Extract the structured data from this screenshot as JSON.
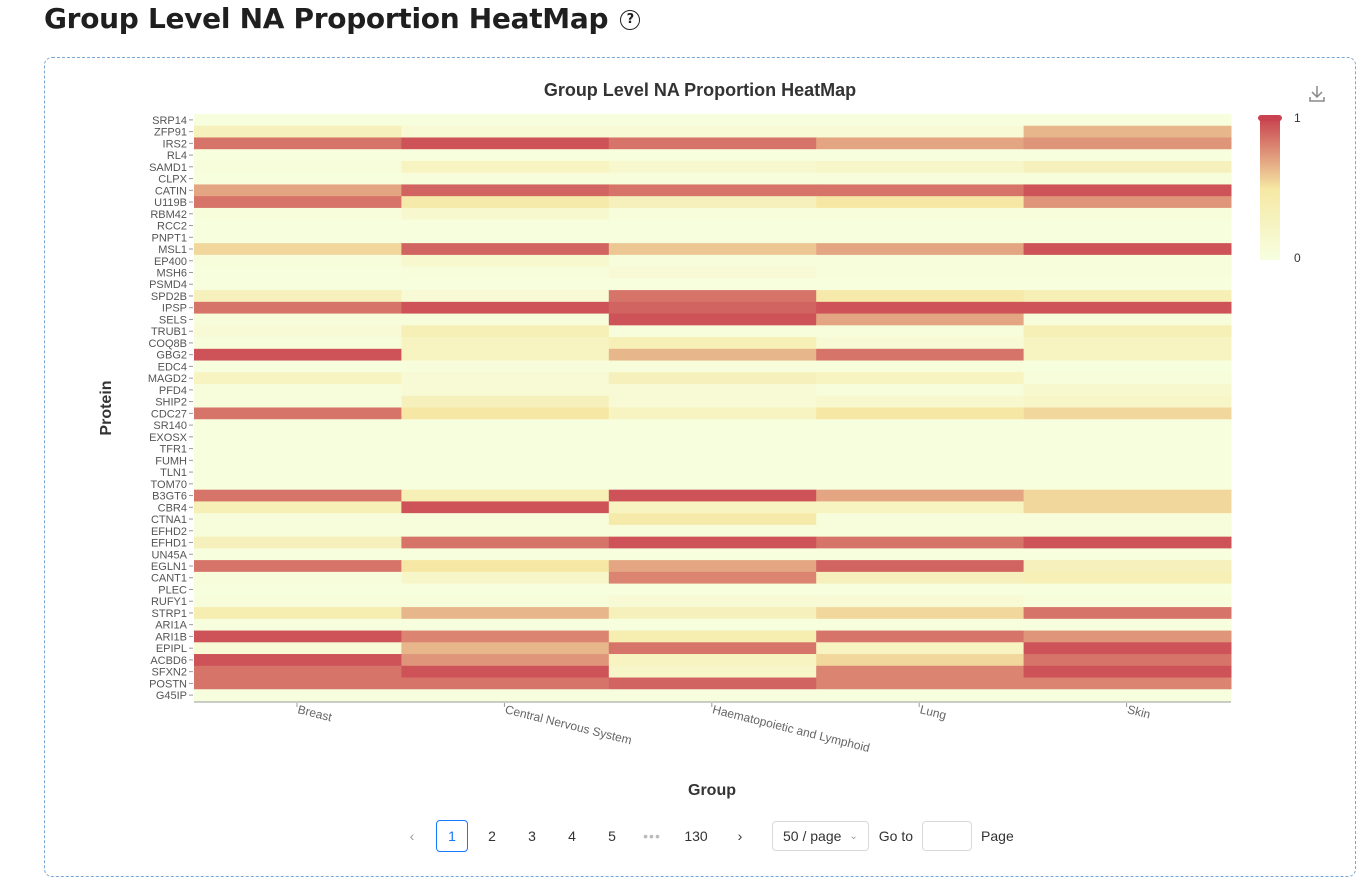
{
  "page": {
    "title": "Group Level NA Proportion HeatMap",
    "help_icon": "question-circle-icon"
  },
  "chart_toolbar": {
    "download_icon": "download-icon"
  },
  "chart_data": {
    "type": "heatmap",
    "title": "Group Level NA Proportion HeatMap",
    "xlabel": "Group",
    "ylabel": "Protein",
    "x": [
      "Breast",
      "Central Nervous System",
      "Haematopoietic and Lymphoid",
      "Lung",
      "Skin"
    ],
    "y": [
      "SRP14",
      "ZFP91",
      "IRS2",
      "RL4",
      "SAMD1",
      "CLPX",
      "CATIN",
      "U119B",
      "RBM42",
      "RCC2",
      "PNPT1",
      "MSL1",
      "EP400",
      "MSH6",
      "PSMD4",
      "SPD2B",
      "IPSP",
      "SELS",
      "TRUB1",
      "COQ8B",
      "GBG2",
      "EDC4",
      "MAGD2",
      "PFD4",
      "SHIP2",
      "CDC27",
      "SR140",
      "EXOSX",
      "TFR1",
      "FUMH",
      "TLN1",
      "TOM70",
      "B3GT6",
      "CBR4",
      "CTNA1",
      "EFHD2",
      "EFHD1",
      "UN45A",
      "EGLN1",
      "CANT1",
      "PLEC",
      "RUFY1",
      "STRP1",
      "ARI1A",
      "ARI1B",
      "EPIPL",
      "ACBD6",
      "SFXN2",
      "POSTN",
      "G45IP"
    ],
    "values": [
      [
        0.02,
        0.02,
        0.02,
        0.02,
        0.02
      ],
      [
        0.3,
        0.1,
        0.1,
        0.1,
        0.65
      ],
      [
        0.85,
        0.95,
        0.85,
        0.7,
        0.75
      ],
      [
        0.02,
        0.02,
        0.02,
        0.02,
        0.02
      ],
      [
        0.05,
        0.25,
        0.15,
        0.2,
        0.3
      ],
      [
        0.02,
        0.05,
        0.05,
        0.05,
        0.05
      ],
      [
        0.7,
        0.9,
        0.85,
        0.85,
        0.95
      ],
      [
        0.85,
        0.45,
        0.3,
        0.5,
        0.75
      ],
      [
        0.05,
        0.15,
        0.05,
        0.05,
        0.05
      ],
      [
        0.02,
        0.02,
        0.02,
        0.02,
        0.02
      ],
      [
        0.02,
        0.02,
        0.02,
        0.02,
        0.02
      ],
      [
        0.55,
        0.9,
        0.6,
        0.7,
        0.95
      ],
      [
        0.05,
        0.15,
        0.05,
        0.05,
        0.05
      ],
      [
        0.02,
        0.05,
        0.1,
        0.05,
        0.05
      ],
      [
        0.02,
        0.02,
        0.02,
        0.02,
        0.02
      ],
      [
        0.3,
        0.1,
        0.85,
        0.45,
        0.35
      ],
      [
        0.85,
        0.95,
        0.9,
        0.95,
        0.95
      ],
      [
        0.05,
        0.05,
        0.95,
        0.7,
        0.05
      ],
      [
        0.1,
        0.35,
        0.05,
        0.05,
        0.35
      ],
      [
        0.05,
        0.25,
        0.35,
        0.1,
        0.25
      ],
      [
        0.95,
        0.25,
        0.65,
        0.85,
        0.25
      ],
      [
        0.02,
        0.05,
        0.05,
        0.05,
        0.02
      ],
      [
        0.25,
        0.1,
        0.3,
        0.25,
        0.05
      ],
      [
        0.05,
        0.1,
        0.1,
        0.05,
        0.15
      ],
      [
        0.05,
        0.3,
        0.1,
        0.15,
        0.2
      ],
      [
        0.85,
        0.5,
        0.25,
        0.5,
        0.55
      ],
      [
        0.02,
        0.02,
        0.02,
        0.02,
        0.02
      ],
      [
        0.02,
        0.02,
        0.02,
        0.02,
        0.02
      ],
      [
        0.02,
        0.02,
        0.02,
        0.02,
        0.02
      ],
      [
        0.02,
        0.02,
        0.02,
        0.02,
        0.02
      ],
      [
        0.02,
        0.02,
        0.02,
        0.02,
        0.02
      ],
      [
        0.02,
        0.02,
        0.02,
        0.02,
        0.02
      ],
      [
        0.85,
        0.35,
        0.95,
        0.7,
        0.55
      ],
      [
        0.35,
        0.95,
        0.25,
        0.25,
        0.55
      ],
      [
        0.05,
        0.05,
        0.45,
        0.05,
        0.05
      ],
      [
        0.05,
        0.05,
        0.05,
        0.05,
        0.05
      ],
      [
        0.3,
        0.85,
        0.95,
        0.85,
        0.95
      ],
      [
        0.02,
        0.02,
        0.02,
        0.02,
        0.02
      ],
      [
        0.85,
        0.5,
        0.7,
        0.9,
        0.3
      ],
      [
        0.05,
        0.2,
        0.8,
        0.3,
        0.35
      ],
      [
        0.02,
        0.02,
        0.02,
        0.02,
        0.02
      ],
      [
        0.05,
        0.05,
        0.1,
        0.1,
        0.05
      ],
      [
        0.4,
        0.65,
        0.3,
        0.55,
        0.85
      ],
      [
        0.02,
        0.02,
        0.02,
        0.02,
        0.02
      ],
      [
        0.95,
        0.8,
        0.4,
        0.85,
        0.75
      ],
      [
        0.1,
        0.65,
        0.85,
        0.25,
        0.95
      ],
      [
        0.95,
        0.75,
        0.25,
        0.55,
        0.85
      ],
      [
        0.85,
        0.95,
        0.2,
        0.8,
        0.95
      ],
      [
        0.85,
        0.85,
        0.9,
        0.8,
        0.8
      ],
      [
        0.02,
        0.02,
        0.02,
        0.02,
        0.02
      ]
    ],
    "color_range": [
      0,
      1
    ],
    "colors": {
      "low": "#f7ffe0",
      "mid": "#f6e8a4",
      "high": "#c8424f"
    },
    "legend": {
      "type": "continuous",
      "placement": "top-right",
      "max_label": "1",
      "min_label": "0"
    },
    "grid": false
  },
  "pagination": {
    "prev_icon": "chevron-left-icon",
    "pages": [
      "1",
      "2",
      "3",
      "4",
      "5"
    ],
    "current": "1",
    "ellipsis": "•••",
    "last_page": "130",
    "next_icon": "chevron-right-icon",
    "page_size": "50 / page",
    "goto_label": "Go to",
    "page_label": "Page",
    "accent": "#1677ff"
  }
}
